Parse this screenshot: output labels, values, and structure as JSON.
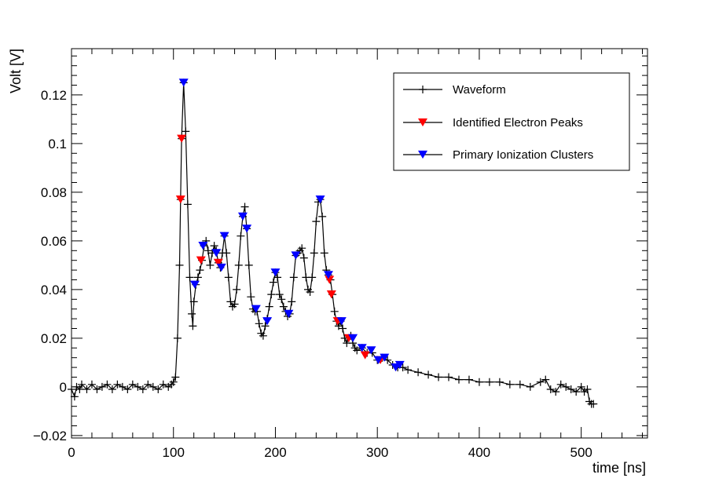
{
  "chart_data": {
    "type": "line",
    "title": "",
    "xlabel": "time [ns]",
    "ylabel": "Volt [V]",
    "xlim": [
      0,
      565
    ],
    "ylim": [
      -0.021,
      0.139
    ],
    "x_ticks": [
      0,
      100,
      200,
      300,
      400,
      500
    ],
    "x_tick_labels": [
      "0",
      "100",
      "200",
      "300",
      "400",
      "500"
    ],
    "y_ticks": [
      -0.02,
      0,
      0.02,
      0.04,
      0.06,
      0.08,
      0.1,
      0.12
    ],
    "y_tick_labels": [
      "−0.02",
      "0",
      "0.02",
      "0.04",
      "0.06",
      "0.08",
      "0.1",
      "0.12"
    ],
    "legend": {
      "position": "top-right",
      "entries": [
        "Waveform",
        "Identified Electron Peaks",
        "Primary Ionization Clusters"
      ]
    },
    "colors": {
      "waveform": "#000000",
      "electron_peaks": "#ff0000",
      "clusters": "#0000ff"
    },
    "series": [
      {
        "name": "Waveform",
        "marker": "plus",
        "points": [
          [
            0,
            -0.001
          ],
          [
            3,
            -0.004
          ],
          [
            5,
            0.0
          ],
          [
            8,
            -0.001
          ],
          [
            10,
            0.001
          ],
          [
            15,
            -0.001
          ],
          [
            20,
            0.001
          ],
          [
            25,
            -0.001
          ],
          [
            30,
            0.0
          ],
          [
            35,
            0.001
          ],
          [
            40,
            -0.001
          ],
          [
            45,
            0.001
          ],
          [
            50,
            0.0
          ],
          [
            55,
            -0.001
          ],
          [
            60,
            0.001
          ],
          [
            65,
            0.0
          ],
          [
            70,
            -0.001
          ],
          [
            75,
            0.001
          ],
          [
            80,
            0.0
          ],
          [
            85,
            -0.001
          ],
          [
            90,
            0.001
          ],
          [
            95,
            0.0
          ],
          [
            98,
            0.001
          ],
          [
            100,
            0.002
          ],
          [
            102,
            0.004
          ],
          [
            104,
            0.02
          ],
          [
            106,
            0.05
          ],
          [
            107,
            0.077
          ],
          [
            108,
            0.102
          ],
          [
            110,
            0.125
          ],
          [
            112,
            0.105
          ],
          [
            114,
            0.075
          ],
          [
            116,
            0.045
          ],
          [
            118,
            0.03
          ],
          [
            119,
            0.025
          ],
          [
            120,
            0.035
          ],
          [
            122,
            0.042
          ],
          [
            124,
            0.045
          ],
          [
            126,
            0.048
          ],
          [
            128,
            0.052
          ],
          [
            130,
            0.058
          ],
          [
            132,
            0.06
          ],
          [
            134,
            0.056
          ],
          [
            136,
            0.05
          ],
          [
            138,
            0.055
          ],
          [
            140,
            0.058
          ],
          [
            142,
            0.056
          ],
          [
            144,
            0.051
          ],
          [
            146,
            0.049
          ],
          [
            148,
            0.055
          ],
          [
            150,
            0.062
          ],
          [
            152,
            0.055
          ],
          [
            154,
            0.045
          ],
          [
            156,
            0.035
          ],
          [
            158,
            0.033
          ],
          [
            160,
            0.034
          ],
          [
            162,
            0.04
          ],
          [
            164,
            0.05
          ],
          [
            166,
            0.062
          ],
          [
            168,
            0.07
          ],
          [
            170,
            0.074
          ],
          [
            172,
            0.065
          ],
          [
            174,
            0.05
          ],
          [
            176,
            0.037
          ],
          [
            178,
            0.032
          ],
          [
            180,
            0.031
          ],
          [
            182,
            0.031
          ],
          [
            184,
            0.026
          ],
          [
            186,
            0.022
          ],
          [
            188,
            0.021
          ],
          [
            190,
            0.025
          ],
          [
            192,
            0.028
          ],
          [
            194,
            0.033
          ],
          [
            196,
            0.038
          ],
          [
            198,
            0.043
          ],
          [
            200,
            0.047
          ],
          [
            202,
            0.045
          ],
          [
            204,
            0.038
          ],
          [
            206,
            0.036
          ],
          [
            208,
            0.033
          ],
          [
            210,
            0.031
          ],
          [
            212,
            0.029
          ],
          [
            214,
            0.03
          ],
          [
            216,
            0.035
          ],
          [
            218,
            0.045
          ],
          [
            220,
            0.054
          ],
          [
            222,
            0.055
          ],
          [
            224,
            0.056
          ],
          [
            226,
            0.057
          ],
          [
            228,
            0.053
          ],
          [
            230,
            0.045
          ],
          [
            232,
            0.04
          ],
          [
            234,
            0.039
          ],
          [
            236,
            0.045
          ],
          [
            238,
            0.055
          ],
          [
            240,
            0.068
          ],
          [
            242,
            0.076
          ],
          [
            244,
            0.077
          ],
          [
            246,
            0.07
          ],
          [
            248,
            0.055
          ],
          [
            250,
            0.048
          ],
          [
            252,
            0.046
          ],
          [
            254,
            0.044
          ],
          [
            256,
            0.038
          ],
          [
            258,
            0.031
          ],
          [
            260,
            0.027
          ],
          [
            262,
            0.025
          ],
          [
            264,
            0.027
          ],
          [
            266,
            0.024
          ],
          [
            268,
            0.02
          ],
          [
            270,
            0.018
          ],
          [
            272,
            0.02
          ],
          [
            274,
            0.021
          ],
          [
            276,
            0.018
          ],
          [
            278,
            0.016
          ],
          [
            280,
            0.015
          ],
          [
            285,
            0.016
          ],
          [
            290,
            0.014
          ],
          [
            295,
            0.014
          ],
          [
            300,
            0.011
          ],
          [
            305,
            0.012
          ],
          [
            310,
            0.011
          ],
          [
            315,
            0.009
          ],
          [
            320,
            0.008
          ],
          [
            325,
            0.008
          ],
          [
            330,
            0.007
          ],
          [
            340,
            0.006
          ],
          [
            350,
            0.005
          ],
          [
            360,
            0.004
          ],
          [
            370,
            0.004
          ],
          [
            380,
            0.003
          ],
          [
            390,
            0.003
          ],
          [
            400,
            0.002
          ],
          [
            410,
            0.002
          ],
          [
            420,
            0.002
          ],
          [
            430,
            0.001
          ],
          [
            440,
            0.001
          ],
          [
            450,
            0.0
          ],
          [
            460,
            0.002
          ],
          [
            465,
            0.003
          ],
          [
            470,
            -0.001
          ],
          [
            475,
            -0.002
          ],
          [
            480,
            0.001
          ],
          [
            485,
            0.0
          ],
          [
            490,
            -0.001
          ],
          [
            495,
            -0.002
          ],
          [
            500,
            0.0
          ],
          [
            503,
            -0.002
          ],
          [
            506,
            -0.001
          ],
          [
            508,
            -0.006
          ],
          [
            510,
            -0.007
          ],
          [
            512,
            -0.007
          ]
        ]
      },
      {
        "name": "Identified Electron Peaks",
        "marker": "triangle-down",
        "points": [
          [
            107,
            0.077
          ],
          [
            108,
            0.102
          ],
          [
            127,
            0.052
          ],
          [
            144,
            0.051
          ],
          [
            253,
            0.044
          ],
          [
            255,
            0.038
          ],
          [
            261,
            0.027
          ],
          [
            272,
            0.02
          ],
          [
            288,
            0.013
          ],
          [
            303,
            0.011
          ]
        ]
      },
      {
        "name": "Primary Ionization Clusters",
        "marker": "triangle-down",
        "points": [
          [
            110,
            0.125
          ],
          [
            121,
            0.042
          ],
          [
            129,
            0.058
          ],
          [
            142,
            0.055
          ],
          [
            147,
            0.049
          ],
          [
            150,
            0.062
          ],
          [
            168,
            0.07
          ],
          [
            172,
            0.065
          ],
          [
            181,
            0.032
          ],
          [
            192,
            0.027
          ],
          [
            200,
            0.047
          ],
          [
            213,
            0.03
          ],
          [
            220,
            0.054
          ],
          [
            244,
            0.077
          ],
          [
            252,
            0.046
          ],
          [
            265,
            0.027
          ],
          [
            276,
            0.02
          ],
          [
            285,
            0.016
          ],
          [
            294,
            0.015
          ],
          [
            301,
            0.011
          ],
          [
            307,
            0.012
          ],
          [
            318,
            0.008
          ],
          [
            322,
            0.009
          ]
        ]
      }
    ]
  }
}
